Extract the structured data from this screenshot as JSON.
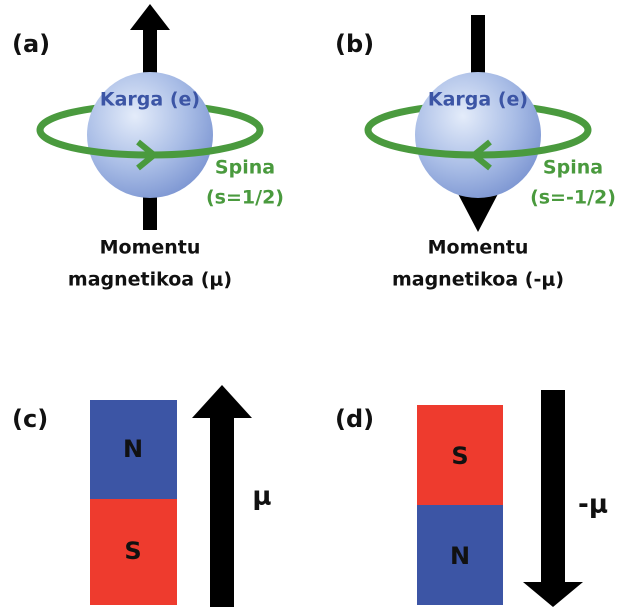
{
  "panels": [
    {
      "label": "(a)",
      "charge": "Karga (e)",
      "spin": [
        "Spina",
        "(s=1/2)"
      ],
      "moment": [
        "Momentu",
        "magnetikoa (μ)"
      ]
    },
    {
      "label": "(b)",
      "charge": "Karga (e)",
      "spin": [
        "Spina",
        "(s=-1/2)"
      ],
      "moment": [
        "Momentu",
        "magnetikoa (-μ)"
      ]
    },
    {
      "label": "(c)",
      "top_pole": "N",
      "bottom_pole": "S",
      "moment": "μ"
    },
    {
      "label": "(d)",
      "top_pole": "S",
      "bottom_pole": "N",
      "moment": "-μ"
    }
  ]
}
